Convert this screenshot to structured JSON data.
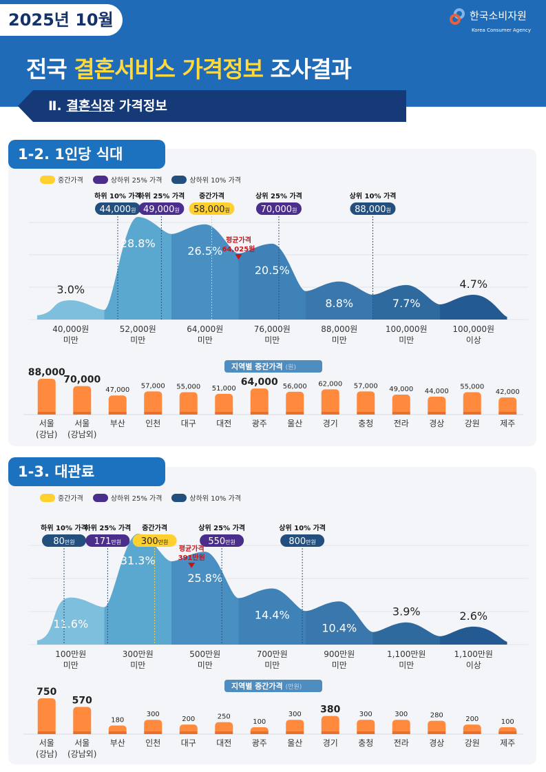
{
  "header": {
    "date": "2025년 10월",
    "logo_ko": "한국소비자원",
    "logo_en": "Korea Consumer Agency",
    "title_pre": "전국 ",
    "title_highlight": "결혼서비스 가격정보",
    "title_post": " 조사결과",
    "section_num": "Ⅱ. ",
    "section_underlined": "결혼식장",
    "section_rest": " 가격정보"
  },
  "colors": {
    "median": "#ffd02e",
    "quartile": "#4b2e8c",
    "decile": "#234f7e",
    "average": "#c4161c",
    "bar": "#ff8a3d",
    "bands": [
      "#7dbfdc",
      "#5aa8d0",
      "#4a8fc2",
      "#3f82b8",
      "#3a77ad",
      "#2f6a9e",
      "#235a92"
    ]
  },
  "legend": {
    "median": "중간가격",
    "quartile": "상하위 25% 가격",
    "decile": "상하위 10% 가격"
  },
  "chart_data": [
    {
      "type": "area",
      "id": "meal",
      "section_title": "1-2. 1인당 식대",
      "categories": [
        "40,000원\n미만",
        "52,000원\n미만",
        "64,000원\n미만",
        "76,000원\n미만",
        "88,000원\n미만",
        "100,000원\n미만",
        "100,000원\n이상"
      ],
      "values": [
        3.0,
        28.8,
        26.5,
        20.5,
        8.8,
        7.7,
        4.7
      ],
      "value_labels": [
        "3.0%",
        "28.8%",
        "26.5%",
        "20.5%",
        "8.8%",
        "7.7%",
        "4.7%"
      ],
      "unit": "%",
      "markers": [
        {
          "label": "하위 10% 가격",
          "value": "44,000",
          "unit": "원",
          "kind": "decile",
          "pos": 1.2
        },
        {
          "label": "하위 25% 가격",
          "value": "49,000",
          "unit": "원",
          "kind": "quartile",
          "pos": 1.85
        },
        {
          "label": "중간가격",
          "value": "58,000",
          "unit": "원",
          "kind": "median",
          "pos": 2.6
        },
        {
          "label": "상위 25% 가격",
          "value": "70,000",
          "unit": "원",
          "kind": "quartile",
          "pos": 3.6
        },
        {
          "label": "상위 10% 가격",
          "value": "88,000",
          "unit": "원",
          "kind": "decile",
          "pos": 5.0
        }
      ],
      "average": {
        "label": "평균가격",
        "value": "64,025원",
        "pos": 3.0
      },
      "regional": {
        "title": "지역별 중간가격",
        "unit": "(원)",
        "regions": [
          "서울\n(강남)",
          "서울\n(강남외)",
          "부산",
          "인천",
          "대구",
          "대전",
          "광주",
          "울산",
          "경기",
          "충청",
          "전라",
          "경상",
          "강원",
          "제주"
        ],
        "values": [
          88000,
          70000,
          47000,
          57000,
          55000,
          51000,
          64000,
          56000,
          62000,
          57000,
          49000,
          44000,
          55000,
          42000
        ],
        "labels": [
          "88,000",
          "70,000",
          "47,000",
          "57,000",
          "55,000",
          "51,000",
          "64,000",
          "56,000",
          "62,000",
          "57,000",
          "49,000",
          "44,000",
          "55,000",
          "42,000"
        ],
        "emphasized": [
          0,
          1,
          6
        ]
      }
    },
    {
      "type": "area",
      "id": "venue",
      "section_title": "1-3. 대관료",
      "categories": [
        "100만원\n미만",
        "300만원\n미만",
        "500만원\n미만",
        "700만원\n미만",
        "900만원\n미만",
        "1,100만원\n미만",
        "1,100만원\n이상"
      ],
      "values": [
        11.6,
        31.3,
        25.8,
        14.4,
        10.4,
        3.9,
        2.6
      ],
      "value_labels": [
        "11.6%",
        "31.3%",
        "25.8%",
        "14.4%",
        "10.4%",
        "3.9%",
        "2.6%"
      ],
      "unit": "%",
      "markers": [
        {
          "label": "하위 10% 가격",
          "value": "80",
          "unit": "만원",
          "kind": "decile",
          "pos": 0.4
        },
        {
          "label": "하위 25% 가격",
          "value": "171",
          "unit": "만원",
          "kind": "quartile",
          "pos": 1.05
        },
        {
          "label": "중간가격",
          "value": "300",
          "unit": "만원",
          "kind": "median",
          "pos": 1.75
        },
        {
          "label": "상위 25% 가격",
          "value": "550",
          "unit": "만원",
          "kind": "quartile",
          "pos": 2.75
        },
        {
          "label": "상위 10% 가격",
          "value": "800",
          "unit": "만원",
          "kind": "decile",
          "pos": 3.95
        }
      ],
      "average": {
        "label": "평균가격",
        "value": "391만원",
        "pos": 2.3
      },
      "regional": {
        "title": "지역별 중간가격",
        "unit": "(만원)",
        "regions": [
          "서울\n(강남)",
          "서울\n(강남외)",
          "부산",
          "인천",
          "대구",
          "대전",
          "광주",
          "울산",
          "경기",
          "충청",
          "전라",
          "경상",
          "강원",
          "제주"
        ],
        "values": [
          750,
          570,
          180,
          300,
          200,
          250,
          100,
          300,
          380,
          300,
          300,
          280,
          200,
          100
        ],
        "labels": [
          "750",
          "570",
          "180",
          "300",
          "200",
          "250",
          "100",
          "300",
          "380",
          "300",
          "300",
          "280",
          "200",
          "100"
        ],
        "emphasized": [
          0,
          1,
          8
        ]
      }
    }
  ]
}
